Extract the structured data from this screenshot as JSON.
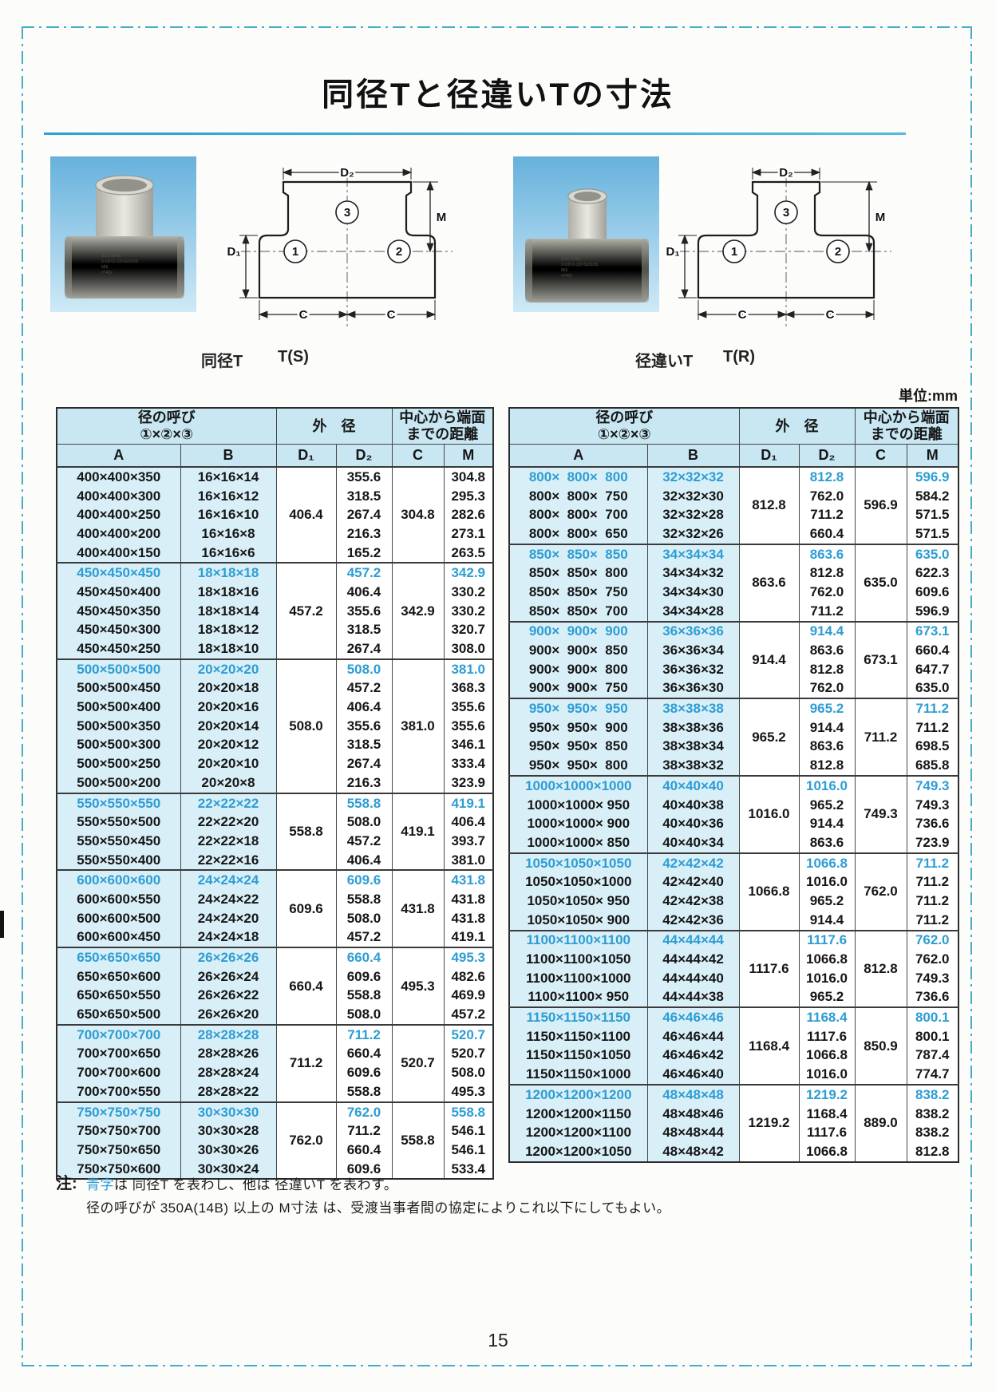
{
  "page": {
    "title": "同径Tと径違いTの寸法",
    "unit_label": "単位:mm",
    "page_number": "15",
    "note_prefix": "注:",
    "note1_blue": "青字",
    "note1_rest": "は 同径T を表わし、他は 径違いT を表わす。",
    "note2": "径の呼びが 350A(14B) 以上の M寸法 は、受渡当事者間の協定によりこれ以下にしてもよい。"
  },
  "figures": {
    "left_caption_type": "同径T",
    "left_caption_code": "T(S)",
    "right_caption_type": "径違いT",
    "right_caption_code": "T(R)",
    "dim": {
      "d1": "D₁",
      "d2": "D₂",
      "c": "C",
      "m": "M",
      "n1": "1",
      "n2": "2",
      "n3": "3"
    }
  },
  "photo_stamp": [
    "SUS 304W",
    "2-1/2×1-1/2×Sch10S",
    "MIE",
    "#7452"
  ],
  "tables": {
    "header": {
      "call1": "径の呼び",
      "call2": "①×②×③",
      "od": "外　径",
      "dist1": "中心から端面",
      "dist2": "までの距離",
      "sub_a": "A",
      "sub_b": "B",
      "sub_d1": "D₁",
      "sub_d2": "D₂",
      "sub_c": "C",
      "sub_m": "M"
    },
    "left": {
      "groups": [
        {
          "d1": "406.4",
          "c": "304.8",
          "rows": [
            {
              "a": "400×400×350",
              "b": "16×16×14",
              "d2": "355.6",
              "m": "304.8",
              "blue": false
            },
            {
              "a": "400×400×300",
              "b": "16×16×12",
              "d2": "318.5",
              "m": "295.3",
              "blue": false
            },
            {
              "a": "400×400×250",
              "b": "16×16×10",
              "d2": "267.4",
              "m": "282.6",
              "blue": false
            },
            {
              "a": "400×400×200",
              "b": "16×16×8",
              "d2": "216.3",
              "m": "273.1",
              "blue": false
            },
            {
              "a": "400×400×150",
              "b": "16×16×6",
              "d2": "165.2",
              "m": "263.5",
              "blue": false
            }
          ]
        },
        {
          "d1": "457.2",
          "c": "342.9",
          "rows": [
            {
              "a": "450×450×450",
              "b": "18×18×18",
              "d2": "457.2",
              "m": "342.9",
              "blue": true
            },
            {
              "a": "450×450×400",
              "b": "18×18×16",
              "d2": "406.4",
              "m": "330.2",
              "blue": false
            },
            {
              "a": "450×450×350",
              "b": "18×18×14",
              "d2": "355.6",
              "m": "330.2",
              "blue": false
            },
            {
              "a": "450×450×300",
              "b": "18×18×12",
              "d2": "318.5",
              "m": "320.7",
              "blue": false
            },
            {
              "a": "450×450×250",
              "b": "18×18×10",
              "d2": "267.4",
              "m": "308.0",
              "blue": false
            }
          ]
        },
        {
          "d1": "508.0",
          "c": "381.0",
          "rows": [
            {
              "a": "500×500×500",
              "b": "20×20×20",
              "d2": "508.0",
              "m": "381.0",
              "blue": true
            },
            {
              "a": "500×500×450",
              "b": "20×20×18",
              "d2": "457.2",
              "m": "368.3",
              "blue": false
            },
            {
              "a": "500×500×400",
              "b": "20×20×16",
              "d2": "406.4",
              "m": "355.6",
              "blue": false
            },
            {
              "a": "500×500×350",
              "b": "20×20×14",
              "d2": "355.6",
              "m": "355.6",
              "blue": false
            },
            {
              "a": "500×500×300",
              "b": "20×20×12",
              "d2": "318.5",
              "m": "346.1",
              "blue": false
            },
            {
              "a": "500×500×250",
              "b": "20×20×10",
              "d2": "267.4",
              "m": "333.4",
              "blue": false
            },
            {
              "a": "500×500×200",
              "b": "20×20×8",
              "d2": "216.3",
              "m": "323.9",
              "blue": false
            }
          ]
        },
        {
          "d1": "558.8",
          "c": "419.1",
          "rows": [
            {
              "a": "550×550×550",
              "b": "22×22×22",
              "d2": "558.8",
              "m": "419.1",
              "blue": true
            },
            {
              "a": "550×550×500",
              "b": "22×22×20",
              "d2": "508.0",
              "m": "406.4",
              "blue": false
            },
            {
              "a": "550×550×450",
              "b": "22×22×18",
              "d2": "457.2",
              "m": "393.7",
              "blue": false
            },
            {
              "a": "550×550×400",
              "b": "22×22×16",
              "d2": "406.4",
              "m": "381.0",
              "blue": false
            }
          ]
        },
        {
          "d1": "609.6",
          "c": "431.8",
          "rows": [
            {
              "a": "600×600×600",
              "b": "24×24×24",
              "d2": "609.6",
              "m": "431.8",
              "blue": true
            },
            {
              "a": "600×600×550",
              "b": "24×24×22",
              "d2": "558.8",
              "m": "431.8",
              "blue": false
            },
            {
              "a": "600×600×500",
              "b": "24×24×20",
              "d2": "508.0",
              "m": "431.8",
              "blue": false
            },
            {
              "a": "600×600×450",
              "b": "24×24×18",
              "d2": "457.2",
              "m": "419.1",
              "blue": false
            }
          ]
        },
        {
          "d1": "660.4",
          "c": "495.3",
          "rows": [
            {
              "a": "650×650×650",
              "b": "26×26×26",
              "d2": "660.4",
              "m": "495.3",
              "blue": true
            },
            {
              "a": "650×650×600",
              "b": "26×26×24",
              "d2": "609.6",
              "m": "482.6",
              "blue": false
            },
            {
              "a": "650×650×550",
              "b": "26×26×22",
              "d2": "558.8",
              "m": "469.9",
              "blue": false
            },
            {
              "a": "650×650×500",
              "b": "26×26×20",
              "d2": "508.0",
              "m": "457.2",
              "blue": false
            }
          ]
        },
        {
          "d1": "711.2",
          "c": "520.7",
          "rows": [
            {
              "a": "700×700×700",
              "b": "28×28×28",
              "d2": "711.2",
              "m": "520.7",
              "blue": true
            },
            {
              "a": "700×700×650",
              "b": "28×28×26",
              "d2": "660.4",
              "m": "520.7",
              "blue": false
            },
            {
              "a": "700×700×600",
              "b": "28×28×24",
              "d2": "609.6",
              "m": "508.0",
              "blue": false
            },
            {
              "a": "700×700×550",
              "b": "28×28×22",
              "d2": "558.8",
              "m": "495.3",
              "blue": false
            }
          ]
        },
        {
          "d1": "762.0",
          "c": "558.8",
          "rows": [
            {
              "a": "750×750×750",
              "b": "30×30×30",
              "d2": "762.0",
              "m": "558.8",
              "blue": true
            },
            {
              "a": "750×750×700",
              "b": "30×30×28",
              "d2": "711.2",
              "m": "546.1",
              "blue": false
            },
            {
              "a": "750×750×650",
              "b": "30×30×26",
              "d2": "660.4",
              "m": "546.1",
              "blue": false
            },
            {
              "a": "750×750×600",
              "b": "30×30×24",
              "d2": "609.6",
              "m": "533.4",
              "blue": false
            }
          ]
        }
      ]
    },
    "right": {
      "groups": [
        {
          "d1": "812.8",
          "c": "596.9",
          "rows": [
            {
              "a": "800×  800×  800",
              "b": "32×32×32",
              "d2": "812.8",
              "m": "596.9",
              "blue": true
            },
            {
              "a": "800×  800×  750",
              "b": "32×32×30",
              "d2": "762.0",
              "m": "584.2",
              "blue": false
            },
            {
              "a": "800×  800×  700",
              "b": "32×32×28",
              "d2": "711.2",
              "m": "571.5",
              "blue": false
            },
            {
              "a": "800×  800×  650",
              "b": "32×32×26",
              "d2": "660.4",
              "m": "571.5",
              "blue": false
            }
          ]
        },
        {
          "d1": "863.6",
          "c": "635.0",
          "rows": [
            {
              "a": "850×  850×  850",
              "b": "34×34×34",
              "d2": "863.6",
              "m": "635.0",
              "blue": true
            },
            {
              "a": "850×  850×  800",
              "b": "34×34×32",
              "d2": "812.8",
              "m": "622.3",
              "blue": false
            },
            {
              "a": "850×  850×  750",
              "b": "34×34×30",
              "d2": "762.0",
              "m": "609.6",
              "blue": false
            },
            {
              "a": "850×  850×  700",
              "b": "34×34×28",
              "d2": "711.2",
              "m": "596.9",
              "blue": false
            }
          ]
        },
        {
          "d1": "914.4",
          "c": "673.1",
          "rows": [
            {
              "a": "900×  900×  900",
              "b": "36×36×36",
              "d2": "914.4",
              "m": "673.1",
              "blue": true
            },
            {
              "a": "900×  900×  850",
              "b": "36×36×34",
              "d2": "863.6",
              "m": "660.4",
              "blue": false
            },
            {
              "a": "900×  900×  800",
              "b": "36×36×32",
              "d2": "812.8",
              "m": "647.7",
              "blue": false
            },
            {
              "a": "900×  900×  750",
              "b": "36×36×30",
              "d2": "762.0",
              "m": "635.0",
              "blue": false
            }
          ]
        },
        {
          "d1": "965.2",
          "c": "711.2",
          "rows": [
            {
              "a": "950×  950×  950",
              "b": "38×38×38",
              "d2": "965.2",
              "m": "711.2",
              "blue": true
            },
            {
              "a": "950×  950×  900",
              "b": "38×38×36",
              "d2": "914.4",
              "m": "711.2",
              "blue": false
            },
            {
              "a": "950×  950×  850",
              "b": "38×38×34",
              "d2": "863.6",
              "m": "698.5",
              "blue": false
            },
            {
              "a": "950×  950×  800",
              "b": "38×38×32",
              "d2": "812.8",
              "m": "685.8",
              "blue": false
            }
          ]
        },
        {
          "d1": "1016.0",
          "c": "749.3",
          "rows": [
            {
              "a": "1000×1000×1000",
              "b": "40×40×40",
              "d2": "1016.0",
              "m": "749.3",
              "blue": true
            },
            {
              "a": "1000×1000× 950",
              "b": "40×40×38",
              "d2": "965.2",
              "m": "749.3",
              "blue": false
            },
            {
              "a": "1000×1000× 900",
              "b": "40×40×36",
              "d2": "914.4",
              "m": "736.6",
              "blue": false
            },
            {
              "a": "1000×1000× 850",
              "b": "40×40×34",
              "d2": "863.6",
              "m": "723.9",
              "blue": false
            }
          ]
        },
        {
          "d1": "1066.8",
          "c": "762.0",
          "rows": [
            {
              "a": "1050×1050×1050",
              "b": "42×42×42",
              "d2": "1066.8",
              "m": "711.2",
              "blue": true
            },
            {
              "a": "1050×1050×1000",
              "b": "42×42×40",
              "d2": "1016.0",
              "m": "711.2",
              "blue": false
            },
            {
              "a": "1050×1050× 950",
              "b": "42×42×38",
              "d2": "965.2",
              "m": "711.2",
              "blue": false
            },
            {
              "a": "1050×1050× 900",
              "b": "42×42×36",
              "d2": "914.4",
              "m": "711.2",
              "blue": false
            }
          ]
        },
        {
          "d1": "1117.6",
          "c": "812.8",
          "rows": [
            {
              "a": "1100×1100×1100",
              "b": "44×44×44",
              "d2": "1117.6",
              "m": "762.0",
              "blue": true
            },
            {
              "a": "1100×1100×1050",
              "b": "44×44×42",
              "d2": "1066.8",
              "m": "762.0",
              "blue": false
            },
            {
              "a": "1100×1100×1000",
              "b": "44×44×40",
              "d2": "1016.0",
              "m": "749.3",
              "blue": false
            },
            {
              "a": "1100×1100× 950",
              "b": "44×44×38",
              "d2": "965.2",
              "m": "736.6",
              "blue": false
            }
          ]
        },
        {
          "d1": "1168.4",
          "c": "850.9",
          "rows": [
            {
              "a": "1150×1150×1150",
              "b": "46×46×46",
              "d2": "1168.4",
              "m": "800.1",
              "blue": true
            },
            {
              "a": "1150×1150×1100",
              "b": "46×46×44",
              "d2": "1117.6",
              "m": "800.1",
              "blue": false
            },
            {
              "a": "1150×1150×1050",
              "b": "46×46×42",
              "d2": "1066.8",
              "m": "787.4",
              "blue": false
            },
            {
              "a": "1150×1150×1000",
              "b": "46×46×40",
              "d2": "1016.0",
              "m": "774.7",
              "blue": false
            }
          ]
        },
        {
          "d1": "1219.2",
          "c": "889.0",
          "rows": [
            {
              "a": "1200×1200×1200",
              "b": "48×48×48",
              "d2": "1219.2",
              "m": "838.2",
              "blue": true
            },
            {
              "a": "1200×1200×1150",
              "b": "48×48×46",
              "d2": "1168.4",
              "m": "838.2",
              "blue": false
            },
            {
              "a": "1200×1200×1100",
              "b": "48×48×44",
              "d2": "1117.6",
              "m": "838.2",
              "blue": false
            },
            {
              "a": "1200×1200×1050",
              "b": "48×48×42",
              "d2": "1066.8",
              "m": "812.8",
              "blue": false
            }
          ]
        }
      ]
    }
  }
}
